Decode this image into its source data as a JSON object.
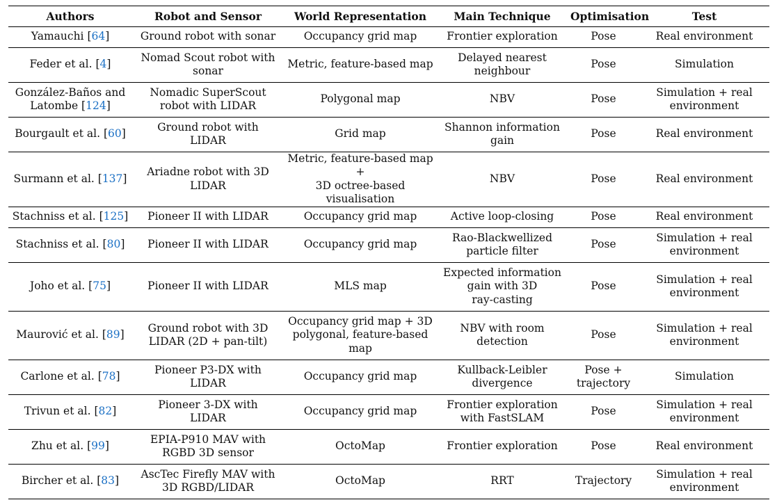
{
  "headers": [
    "Authors",
    "Robot and Sensor",
    "World Representation",
    "Main Technique",
    "Optimisation",
    "Test"
  ],
  "rows": [
    {
      "author": "Yamauchi [",
      "ref": "64",
      "robot": "Ground robot with sonar",
      "world": "Occupancy grid map",
      "technique": "Frontier exploration",
      "opt": "Pose",
      "test": "Real environment"
    },
    {
      "author": "Feder et al. [",
      "ref": "4",
      "robot": "Nomad Scout robot with\nsonar",
      "world": "Metric, feature-based map",
      "technique": "Delayed nearest\nneighbour",
      "opt": "Pose",
      "test": "Simulation"
    },
    {
      "author": "González-Baños and\nLatombe [",
      "ref": "124",
      "robot": "Nomadic SuperScout\nrobot with LIDAR",
      "world": "Polygonal map",
      "technique": "NBV",
      "opt": "Pose",
      "test": "Simulation + real\nenvironment"
    },
    {
      "author": "Bourgault et al. [",
      "ref": "60",
      "robot": "Ground robot with\nLIDAR",
      "world": "Grid map",
      "technique": "Shannon information\ngain",
      "opt": "Pose",
      "test": "Real environment"
    },
    {
      "author": "Surmann et al. [",
      "ref": "137",
      "robot": "Ariadne robot with 3D\nLIDAR",
      "world": "Metric, feature-based map +\n3D octree-based\nvisualisation",
      "technique": "NBV",
      "opt": "Pose",
      "test": "Real environment"
    },
    {
      "author": "Stachniss et al. [",
      "ref": "125",
      "robot": "Pioneer II with LIDAR",
      "world": "Occupancy grid map",
      "technique": "Active loop-closing",
      "opt": "Pose",
      "test": "Real environment"
    },
    {
      "author": "Stachniss et al. [",
      "ref": "80",
      "robot": "Pioneer II with LIDAR",
      "world": "Occupancy grid map",
      "technique": "Rao-Blackwellized\nparticle filter",
      "opt": "Pose",
      "test": "Simulation + real\nenvironment"
    },
    {
      "author": "Joho et al. [",
      "ref": "75",
      "robot": "Pioneer II with LIDAR",
      "world": "MLS map",
      "technique": "Expected information\ngain with 3D\nray-casting",
      "opt": "Pose",
      "test": "Simulation + real\nenvironment"
    },
    {
      "author": "Maurović et al. [",
      "ref": "89",
      "robot": "Ground robot with 3D\nLIDAR (2D + pan-tilt)",
      "world": "Occupancy grid map + 3D\npolygonal, feature-based\nmap",
      "technique": "NBV with room\ndetection",
      "opt": "Pose",
      "test": "Simulation + real\nenvironment"
    },
    {
      "author": "Carlone et al. [",
      "ref": "78",
      "robot": "Pioneer P3-DX with\nLIDAR",
      "world": "Occupancy grid map",
      "technique": "Kullback-Leibler\ndivergence",
      "opt": "Pose +\ntrajectory",
      "test": "Simulation"
    },
    {
      "author": "Trivun et al. [",
      "ref": "82",
      "robot": "Pioneer 3-DX with\nLIDAR",
      "world": "Occupancy grid map",
      "technique": "Frontier exploration\nwith FastSLAM",
      "opt": "Pose",
      "test": "Simulation + real\nenvironment"
    },
    {
      "author": "Zhu et al. [",
      "ref": "99",
      "robot": "EPIA-P910 MAV with\nRGBD 3D sensor",
      "world": "OctoMap",
      "technique": "Frontier exploration",
      "opt": "Pose",
      "test": "Real environment"
    },
    {
      "author": "Bircher et al. [",
      "ref": "83",
      "robot": "AscTec Firefly MAV with\n3D RGBD/LIDAR",
      "world": "OctoMap",
      "technique": "RRT",
      "opt": "Trajectory",
      "test": "Simulation + real\nenvironment"
    }
  ],
  "row_heights": []
}
